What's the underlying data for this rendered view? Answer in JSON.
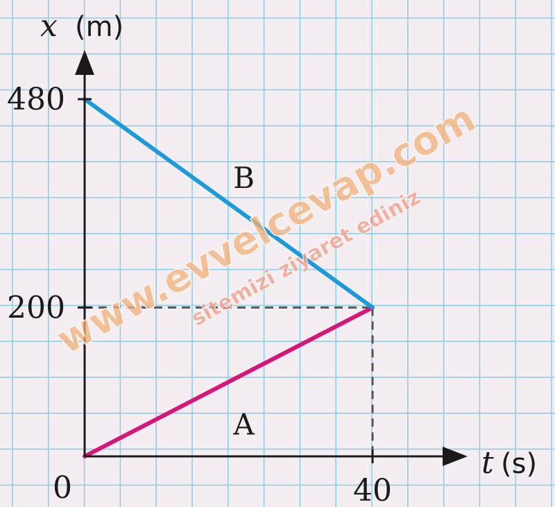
{
  "chart_data": {
    "type": "line",
    "x_var": "t",
    "x_unit": "(s)",
    "y_var": "x",
    "y_unit": "(m)",
    "origin_label": "0",
    "x_ticks": [
      40
    ],
    "x_tick_labels": [
      "40"
    ],
    "y_ticks": [
      480,
      200
    ],
    "y_tick_labels": [
      "480",
      "200"
    ],
    "grid": true,
    "series": [
      {
        "name": "A",
        "color": "#d6177a",
        "x": [
          0,
          40
        ],
        "y": [
          0,
          200
        ]
      },
      {
        "name": "B",
        "color": "#1e9ad9",
        "x": [
          0,
          40
        ],
        "y": [
          480,
          200
        ]
      }
    ],
    "reference_point": {
      "x": 40,
      "y": 200
    }
  },
  "watermark": {
    "main": "www.evvelcevap.com",
    "sub": "sitemizi ziyaret ediniz"
  },
  "colors": {
    "background": "#f4edf2",
    "grid": "#8ecfe6",
    "axis": "#1a1a1a"
  }
}
